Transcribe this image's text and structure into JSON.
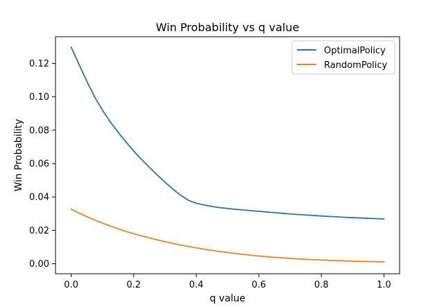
{
  "chart_data": {
    "type": "line",
    "title": "Win Probability vs q value",
    "xlabel": "q value",
    "ylabel": "Win Probability",
    "xlim": [
      -0.05,
      1.05
    ],
    "ylim": [
      -0.006,
      0.136
    ],
    "x_ticks": [
      0.0,
      0.2,
      0.4,
      0.6,
      0.8,
      1.0
    ],
    "x_tick_labels": [
      "0.0",
      "0.2",
      "0.4",
      "0.6",
      "0.8",
      "1.0"
    ],
    "y_ticks": [
      0.0,
      0.02,
      0.04,
      0.06,
      0.08,
      0.1,
      0.12
    ],
    "y_tick_labels": [
      "0.00",
      "0.02",
      "0.04",
      "0.06",
      "0.08",
      "0.10",
      "0.12"
    ],
    "grid": false,
    "legend_position": "top-right",
    "x": [
      0.0,
      0.025,
      0.05,
      0.075,
      0.1,
      0.125,
      0.15,
      0.175,
      0.2,
      0.225,
      0.25,
      0.275,
      0.3,
      0.325,
      0.35,
      0.375,
      0.4,
      0.425,
      0.45,
      0.475,
      0.5,
      0.525,
      0.55,
      0.575,
      0.6,
      0.625,
      0.65,
      0.675,
      0.7,
      0.725,
      0.75,
      0.775,
      0.8,
      0.825,
      0.85,
      0.875,
      0.9,
      0.925,
      0.95,
      0.975,
      1.0
    ],
    "series": [
      {
        "name": "OptimalPolicy",
        "color": "#1f77b4",
        "values": [
          0.1298,
          0.1195,
          0.1093,
          0.1,
          0.092,
          0.085,
          0.0788,
          0.073,
          0.0675,
          0.0625,
          0.0578,
          0.0532,
          0.0488,
          0.0448,
          0.041,
          0.038,
          0.0362,
          0.0352,
          0.0343,
          0.0336,
          0.0331,
          0.0326,
          0.0322,
          0.0318,
          0.0314,
          0.031,
          0.0306,
          0.0302,
          0.0298,
          0.0295,
          0.0292,
          0.0289,
          0.0286,
          0.0283,
          0.0281,
          0.0278,
          0.0276,
          0.0274,
          0.0272,
          0.027,
          0.0268
        ]
      },
      {
        "name": "RandomPolicy",
        "color": "#ff7f0e",
        "values": [
          0.0326,
          0.0303,
          0.0282,
          0.0262,
          0.0243,
          0.0226,
          0.0209,
          0.0194,
          0.018,
          0.0167,
          0.0155,
          0.0143,
          0.0132,
          0.0122,
          0.0112,
          0.0103,
          0.0095,
          0.0087,
          0.008,
          0.0073,
          0.0067,
          0.0061,
          0.0056,
          0.0051,
          0.0046,
          0.0042,
          0.0038,
          0.0035,
          0.0032,
          0.0029,
          0.0026,
          0.0024,
          0.0022,
          0.002,
          0.0018,
          0.0017,
          0.0015,
          0.0014,
          0.0013,
          0.0012,
          0.0011
        ]
      }
    ]
  }
}
